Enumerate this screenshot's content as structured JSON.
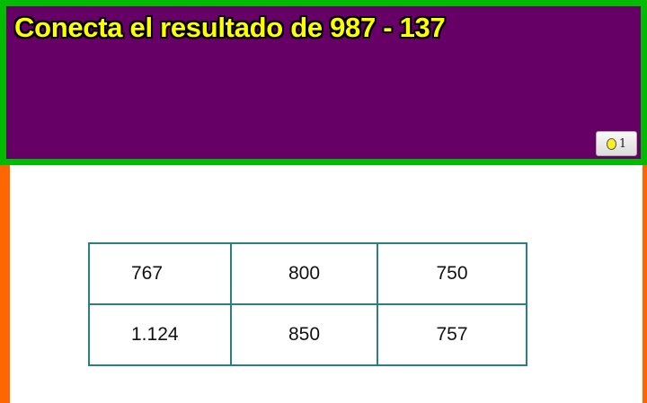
{
  "header": {
    "title": "Conecta el resultado de 987 - 137",
    "badge_count": "1",
    "colors": {
      "background": "#660066",
      "border": "#00bb00",
      "title": "#ffff00"
    }
  },
  "frame": {
    "side_color": "#ff6600"
  },
  "grid": {
    "rows": [
      [
        "767",
        "800",
        "750"
      ],
      [
        "1.124",
        "850",
        "757"
      ]
    ]
  }
}
